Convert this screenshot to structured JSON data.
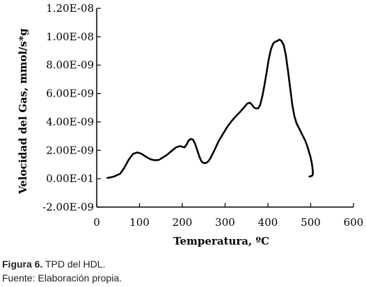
{
  "chart_data": {
    "type": "line",
    "title": "",
    "xlabel": "Temperatura, ºC",
    "ylabel": "Velocidad del Gas, mmol/s*g",
    "xlim": [
      0,
      600
    ],
    "ylim": [
      -2e-09,
      1.2e-08
    ],
    "x_ticks": [
      0,
      100,
      200,
      300,
      400,
      500,
      600
    ],
    "x_tick_labels": [
      "0",
      "100",
      "200",
      "300",
      "400",
      "500",
      "600"
    ],
    "y_ticks": [
      -2e-09,
      0,
      2e-09,
      4e-09,
      6e-09,
      8e-09,
      1e-08,
      1.2e-08
    ],
    "y_tick_labels": [
      "-2.00E-09",
      "0.00E-01",
      "2.00E-09",
      "4.00E-09",
      "6.00E-09",
      "8.00E-09",
      "1.00E-08",
      "1.20E-08"
    ],
    "grid": false,
    "series": [
      {
        "color": "#000000",
        "x": [
          25,
          40,
          55,
          65,
          75,
          85,
          95,
          105,
          115,
          125,
          135,
          145,
          155,
          165,
          175,
          185,
          195,
          205,
          210,
          215,
          220,
          225,
          230,
          235,
          240,
          245,
          250,
          255,
          260,
          265,
          275,
          285,
          295,
          305,
          315,
          325,
          335,
          345,
          352,
          358,
          363,
          368,
          372,
          377,
          382,
          387,
          392,
          397,
          402,
          407,
          412,
          417,
          422,
          427,
          432,
          437,
          442,
          447,
          452,
          457,
          462,
          467,
          472,
          477,
          482,
          487,
          492,
          495,
          499,
          502,
          504,
          505,
          505,
          504,
          503,
          500,
          497
        ],
        "y": [
          5e-11,
          1.5e-10,
          3.5e-10,
          8e-10,
          1.35e-09,
          1.75e-09,
          1.85e-09,
          1.75e-09,
          1.55e-09,
          1.38e-09,
          1.3e-09,
          1.32e-09,
          1.5e-09,
          1.7e-09,
          1.95e-09,
          2.2e-09,
          2.3e-09,
          2.2e-09,
          2.4e-09,
          2.7e-09,
          2.8e-09,
          2.75e-09,
          2.45e-09,
          2e-09,
          1.55e-09,
          1.2e-09,
          1.1e-09,
          1.1e-09,
          1.2e-09,
          1.4e-09,
          2e-09,
          2.65e-09,
          3.15e-09,
          3.65e-09,
          4.05e-09,
          4.4e-09,
          4.7e-09,
          5.05e-09,
          5.3e-09,
          5.35e-09,
          5.2e-09,
          5e-09,
          4.95e-09,
          4.95e-09,
          5.2e-09,
          5.8e-09,
          6.6e-09,
          7.5e-09,
          8.4e-09,
          9.1e-09,
          9.5e-09,
          9.65e-09,
          9.7e-09,
          9.8e-09,
          9.7e-09,
          9.4e-09,
          8.7e-09,
          7.6e-09,
          6.4e-09,
          5.2e-09,
          4.4e-09,
          3.9e-09,
          3.6e-09,
          3.3e-09,
          3e-09,
          2.7e-09,
          2.3e-09,
          2e-09,
          1.6e-09,
          1.2e-09,
          8e-10,
          5e-10,
          3e-10,
          2.5e-10,
          2e-10,
          1.8e-10,
          1.5e-10
        ]
      }
    ]
  },
  "caption": {
    "figure_label": "Figura 6.",
    "figure_text": " TPD del HDL.",
    "source": "Fuente: Elaboración propia."
  }
}
